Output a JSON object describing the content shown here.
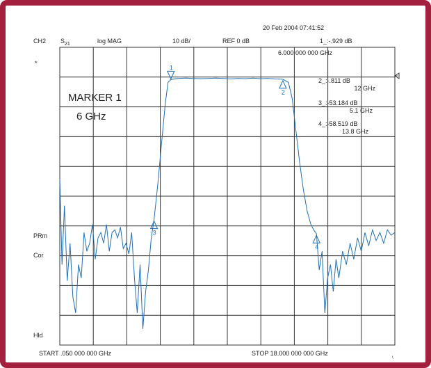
{
  "header": {
    "timestamp": "20 Feb 2004  07:41:52",
    "channel": "CH2",
    "param_main": "S",
    "param_sub": "21",
    "format": "log MAG",
    "scale": "10 dB/",
    "ref": "REF 0 dB",
    "marker_readout": "1_:-.929  dB",
    "marker_freq": "6.000 000 000 GHz",
    "star": "*"
  },
  "marker_list": [
    {
      "line1": "2_:-.811  dB",
      "line2": "12 GHz"
    },
    {
      "line1": "3_:-53.184 dB",
      "line2": "5.1 GHz"
    },
    {
      "line1": "4_:-58.519 dB",
      "line2": "13.8 GHz"
    }
  ],
  "annotation": {
    "line1": "MARKER 1",
    "line2": "6 GHz"
  },
  "side_labels": {
    "prm": "PRm",
    "cor": "Cor",
    "hld": "Hld"
  },
  "footer": {
    "start": "START  .050 000 000 GHz",
    "stop": "STOP 18.000 000 000 GHz",
    "corner_mark": "\\"
  },
  "colors": {
    "trace": "#1f6fb5",
    "grid": "#333333",
    "frame": "#a3203f"
  },
  "chart_data": {
    "type": "line",
    "title": "",
    "xlabel": "",
    "ylabel": "",
    "x_unit": "GHz",
    "y_unit": "dB",
    "xlim": [
      0.05,
      18.0
    ],
    "ylim": [
      -100,
      0
    ],
    "grid": true,
    "markers": [
      {
        "label": "1",
        "x": 6.0,
        "y": -0.929,
        "symbol": "down"
      },
      {
        "label": "2",
        "x": 12.0,
        "y": -0.811,
        "symbol": "up"
      },
      {
        "label": "3",
        "x": 5.1,
        "y": -53.184,
        "symbol": "up"
      },
      {
        "label": "4",
        "x": 13.8,
        "y": -58.519,
        "symbol": "up"
      }
    ],
    "series": [
      {
        "x": [
          0.05,
          0.17,
          0.3,
          0.45,
          0.6,
          0.75,
          0.9,
          1.05,
          1.2,
          1.35,
          1.5,
          1.65,
          1.8,
          1.95,
          2.1,
          2.25,
          2.4,
          2.55,
          2.7,
          2.85,
          3.0,
          3.15,
          3.3,
          3.45,
          3.6,
          3.75,
          3.9,
          4.05,
          4.2,
          4.35,
          4.5,
          4.65,
          4.8,
          4.95,
          5.1,
          5.3,
          5.5,
          5.7,
          5.85,
          6.0,
          6.4,
          6.8,
          7.2,
          7.6,
          8.0,
          8.4,
          8.8,
          9.2,
          9.6,
          10.0,
          10.4,
          10.8,
          11.2,
          11.6,
          12.0,
          12.3,
          12.5,
          12.7,
          12.9,
          13.1,
          13.3,
          13.5,
          13.65,
          13.8,
          13.95,
          14.1,
          14.25,
          14.4,
          14.55,
          14.7,
          14.85,
          15.0,
          15.2,
          15.4,
          15.6,
          15.8,
          16.0,
          16.2,
          16.4,
          16.6,
          16.8,
          17.0,
          17.2,
          17.4,
          17.6,
          17.8,
          18.0
        ],
        "y": [
          -38,
          -70,
          -48,
          -76,
          -62,
          -82,
          -88,
          -70,
          -75,
          -58,
          -65,
          -62,
          -55,
          -68,
          -60,
          -58,
          -62,
          -55,
          -65,
          -58,
          -57,
          -60,
          -56,
          -64,
          -62,
          -66,
          -58,
          -75,
          -88,
          -70,
          -94,
          -80,
          -72,
          -60,
          -53.2,
          -40,
          -25,
          -10,
          -2,
          -0.93,
          -0.5,
          -0.4,
          -0.5,
          -0.6,
          -0.5,
          -0.4,
          -0.5,
          -0.7,
          -0.5,
          -0.6,
          -0.4,
          -0.6,
          -0.5,
          -0.7,
          -0.81,
          -2,
          -8,
          -20,
          -32,
          -42,
          -50,
          -55,
          -57,
          -58.5,
          -72,
          -65,
          -88,
          -75,
          -70,
          -80,
          -68,
          -75,
          -65,
          -70,
          -62,
          -68,
          -60,
          -65,
          -58,
          -63,
          -57,
          -61,
          -58,
          -62,
          -57,
          -59,
          -58
        ]
      }
    ]
  }
}
